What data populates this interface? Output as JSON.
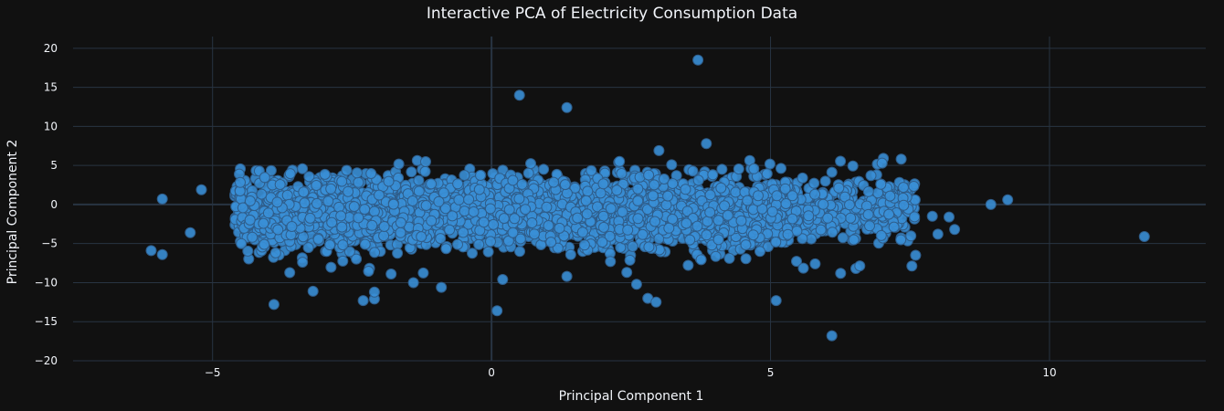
{
  "chart_data": {
    "type": "scatter",
    "title": "Interactive PCA of Electricity Consumption Data",
    "xlabel": "Principal Component 1",
    "ylabel": "Principal Component 2",
    "xlim": [
      -7.5,
      12.8
    ],
    "ylim": [
      -20,
      21.5
    ],
    "x_ticks": [
      -5,
      0,
      5,
      10
    ],
    "y_ticks": [
      -20,
      -15,
      -10,
      -5,
      0,
      5,
      10,
      15,
      20
    ],
    "x_tick_labels": [
      "−5",
      "0",
      "5",
      "10"
    ],
    "y_tick_labels": [
      "−20",
      "−15",
      "−10",
      "−5",
      "0",
      "5",
      "10",
      "15",
      "20"
    ],
    "grid": true,
    "marker_color": "#3a8fd6",
    "background": "#111111",
    "cluster_description_points": "dense cloud of several thousand points spanning PC1 ≈ -4.5..8 and PC2 ≈ -7..5",
    "outliers": [
      {
        "x": 3.7,
        "y": 18.5
      },
      {
        "x": 0.5,
        "y": 14.0
      },
      {
        "x": 1.35,
        "y": 12.4
      },
      {
        "x": 3.85,
        "y": 7.8
      },
      {
        "x": 3.0,
        "y": 6.9
      },
      {
        "x": 7.0,
        "y": 5.3
      },
      {
        "x": -6.1,
        "y": -5.9
      },
      {
        "x": -5.9,
        "y": -6.4
      },
      {
        "x": -5.9,
        "y": 0.7
      },
      {
        "x": -5.4,
        "y": -3.6
      },
      {
        "x": -5.2,
        "y": 1.9
      },
      {
        "x": -3.9,
        "y": -12.8
      },
      {
        "x": -2.3,
        "y": -12.3
      },
      {
        "x": -2.1,
        "y": -12.1
      },
      {
        "x": -2.1,
        "y": -11.2
      },
      {
        "x": -3.2,
        "y": -11.1
      },
      {
        "x": -1.4,
        "y": -10.0
      },
      {
        "x": -0.9,
        "y": -10.6
      },
      {
        "x": 0.1,
        "y": -13.6
      },
      {
        "x": 0.2,
        "y": -9.6
      },
      {
        "x": 2.8,
        "y": -12.0
      },
      {
        "x": 2.95,
        "y": -12.5
      },
      {
        "x": 2.6,
        "y": -10.2
      },
      {
        "x": 5.1,
        "y": -12.3
      },
      {
        "x": 6.1,
        "y": -16.8
      },
      {
        "x": 8.95,
        "y": 0.0
      },
      {
        "x": 9.25,
        "y": 0.6
      },
      {
        "x": 11.7,
        "y": -4.1
      },
      {
        "x": 8.3,
        "y": -3.2
      },
      {
        "x": 8.0,
        "y": -3.8
      },
      {
        "x": 7.9,
        "y": -1.5
      },
      {
        "x": 8.2,
        "y": -1.6
      },
      {
        "x": 7.6,
        "y": -6.5
      },
      {
        "x": 6.8,
        "y": 3.7
      },
      {
        "x": 5.8,
        "y": -7.6
      },
      {
        "x": 1.35,
        "y": -9.2
      },
      {
        "x": -1.8,
        "y": -8.9
      }
    ]
  }
}
